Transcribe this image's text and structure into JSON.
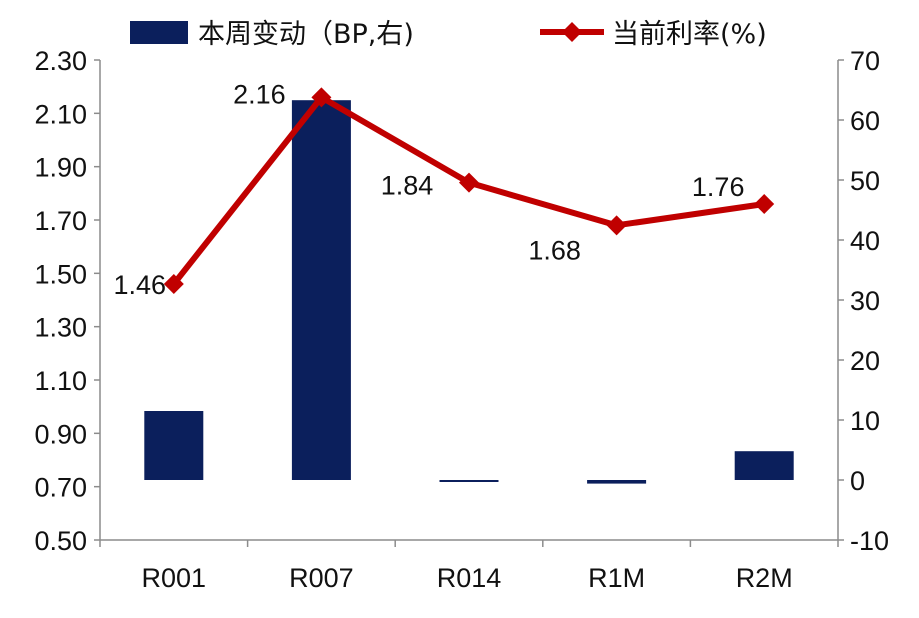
{
  "chart_data": {
    "type": "bar+line",
    "categories": [
      "R001",
      "R007",
      "R014",
      "R1M",
      "R2M"
    ],
    "series": [
      {
        "name": "本周变动（BP,右)",
        "kind": "bar",
        "axis": "right",
        "color": "#0b1f5c",
        "values": [
          11.5,
          63.3,
          -0.3,
          -0.6,
          4.8
        ]
      },
      {
        "name": "当前利率(%)",
        "kind": "line",
        "axis": "left",
        "color": "#c00000",
        "marker": "diamond",
        "values": [
          1.46,
          2.16,
          1.84,
          1.68,
          1.76
        ],
        "data_labels": [
          "1.46",
          "2.16",
          "1.84",
          "1.68",
          "1.76"
        ]
      }
    ],
    "left_axis": {
      "ylim": [
        0.5,
        2.3
      ],
      "ticks": [
        "0.50",
        "0.70",
        "0.90",
        "1.10",
        "1.30",
        "1.50",
        "1.70",
        "1.90",
        "2.10",
        "2.30"
      ]
    },
    "right_axis": {
      "ylim": [
        -10,
        70
      ],
      "ticks": [
        "-10",
        "0",
        "10",
        "20",
        "30",
        "40",
        "50",
        "60",
        "70"
      ]
    },
    "legend_position": "top",
    "grid": false
  }
}
